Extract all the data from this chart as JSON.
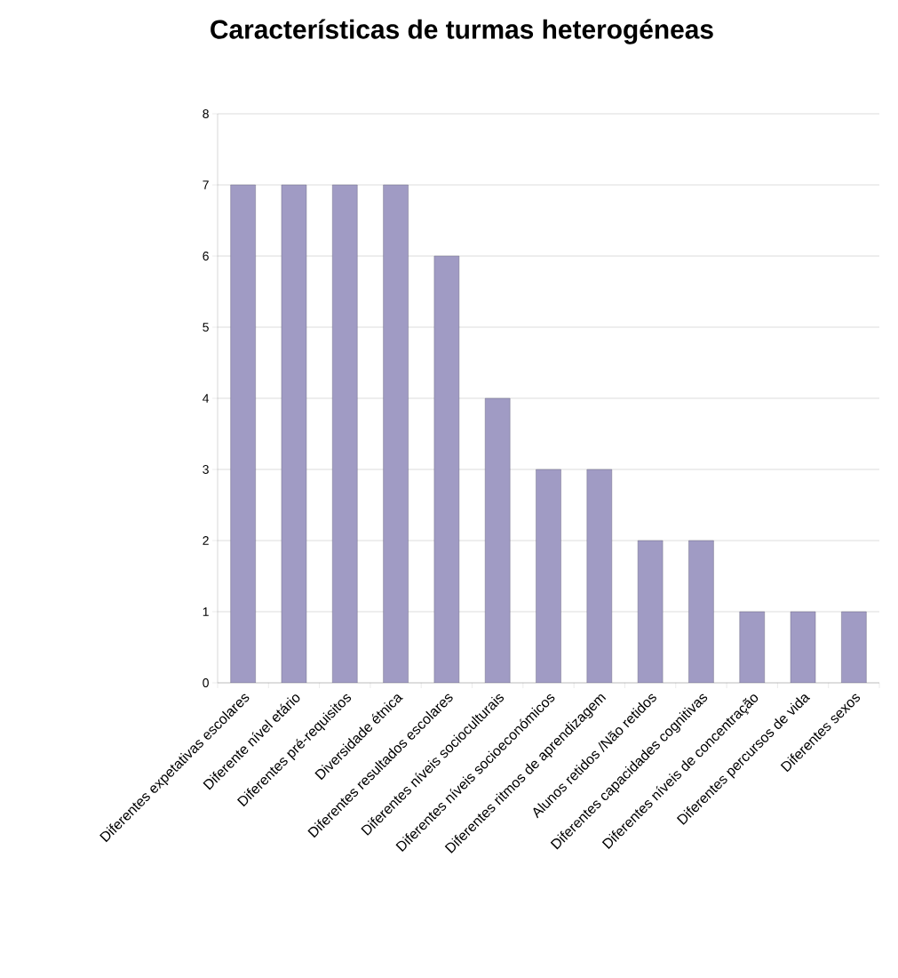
{
  "chart_data": {
    "type": "bar",
    "title": "Características de turmas heterogéneas",
    "categories": [
      "Diferentes expetativas escolares",
      "Diferente nível etário",
      "Diferentes pré-requisitos",
      "Diversidade étnica",
      "Diferentes resultados escolares",
      "Diferentes níveis socioculturais",
      "Diferentes níveis socioeconómicos",
      "Diferentes ritmos de aprendizagem",
      "Alunos retidos /Não retidos",
      "Diferentes capacidades cognitivas",
      "Diferentes níveis de concentração",
      "Diferentes percursos de vida",
      "Diferentes sexos"
    ],
    "values": [
      7,
      7,
      7,
      7,
      6,
      4,
      3,
      3,
      2,
      2,
      1,
      1,
      1
    ],
    "color": "#a09bc4",
    "ylim": [
      0,
      8
    ],
    "yticks": [
      0,
      1,
      2,
      3,
      4,
      5,
      6,
      7,
      8
    ],
    "grid": "y"
  }
}
